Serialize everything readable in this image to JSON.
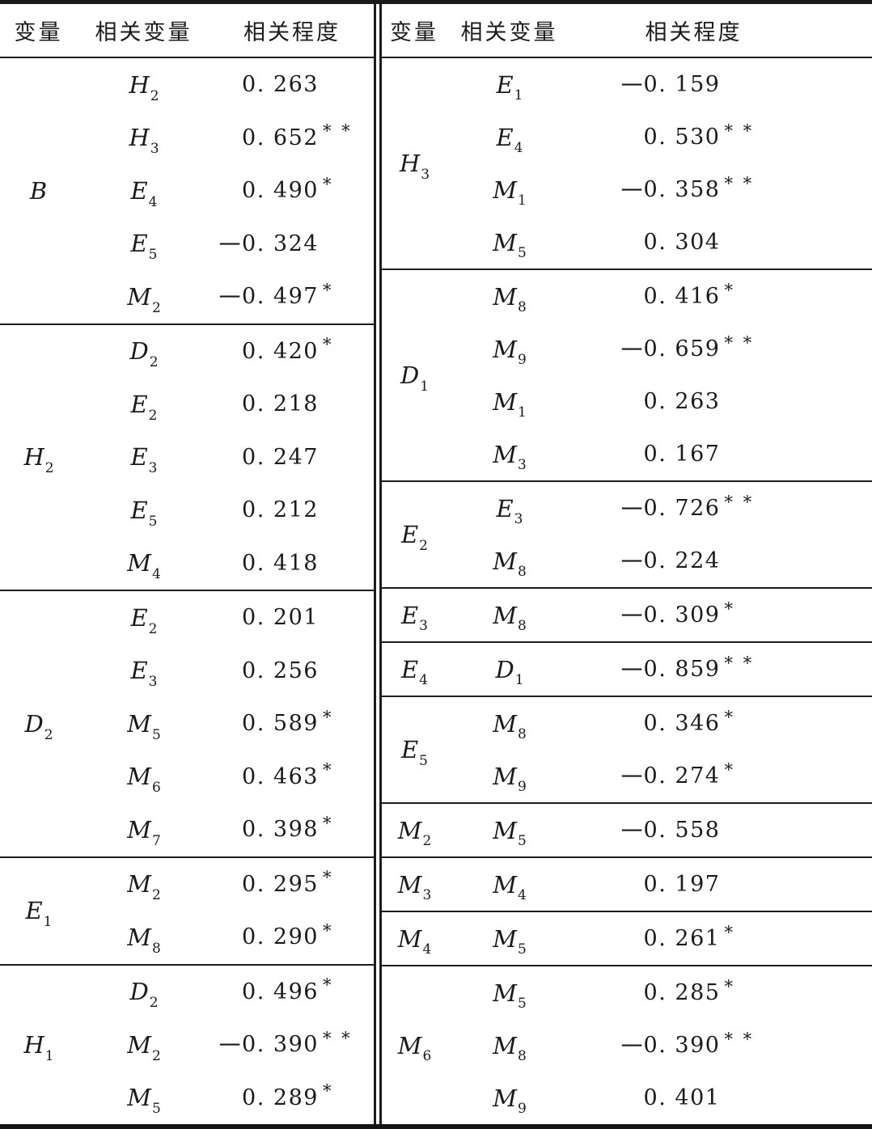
{
  "table": {
    "halves": [
      {
        "id": "left",
        "headers": {
          "variable": "变量",
          "related": "相关变量",
          "degree": "相关程度"
        },
        "sections": [
          {
            "variable": {
              "base": "B",
              "sub": ""
            },
            "rows": [
              {
                "related": {
                  "base": "H",
                  "sub": "2"
                },
                "value": {
                  "sign": "",
                  "num": "0. 263",
                  "stars": ""
                }
              },
              {
                "related": {
                  "base": "H",
                  "sub": "3"
                },
                "value": {
                  "sign": "",
                  "num": "0. 652",
                  "stars": "* *"
                }
              },
              {
                "related": {
                  "base": "E",
                  "sub": "4"
                },
                "value": {
                  "sign": "",
                  "num": "0. 490",
                  "stars": "*"
                }
              },
              {
                "related": {
                  "base": "E",
                  "sub": "5"
                },
                "value": {
                  "sign": "−",
                  "num": "0. 324",
                  "stars": ""
                }
              },
              {
                "related": {
                  "base": "M",
                  "sub": "2"
                },
                "value": {
                  "sign": "−",
                  "num": "0. 497",
                  "stars": "*"
                }
              }
            ]
          },
          {
            "variable": {
              "base": "H",
              "sub": "2"
            },
            "rows": [
              {
                "related": {
                  "base": "D",
                  "sub": "2"
                },
                "value": {
                  "sign": "",
                  "num": "0. 420",
                  "stars": "*"
                }
              },
              {
                "related": {
                  "base": "E",
                  "sub": "2"
                },
                "value": {
                  "sign": "",
                  "num": "0. 218",
                  "stars": ""
                }
              },
              {
                "related": {
                  "base": "E",
                  "sub": "3"
                },
                "value": {
                  "sign": "",
                  "num": "0. 247",
                  "stars": ""
                }
              },
              {
                "related": {
                  "base": "E",
                  "sub": "5"
                },
                "value": {
                  "sign": "",
                  "num": "0. 212",
                  "stars": ""
                }
              },
              {
                "related": {
                  "base": "M",
                  "sub": "4"
                },
                "value": {
                  "sign": "",
                  "num": "0. 418",
                  "stars": ""
                }
              }
            ]
          },
          {
            "variable": {
              "base": "D",
              "sub": "2"
            },
            "rows": [
              {
                "related": {
                  "base": "E",
                  "sub": "2"
                },
                "value": {
                  "sign": "",
                  "num": "0. 201",
                  "stars": ""
                }
              },
              {
                "related": {
                  "base": "E",
                  "sub": "3"
                },
                "value": {
                  "sign": "",
                  "num": "0. 256",
                  "stars": ""
                }
              },
              {
                "related": {
                  "base": "M",
                  "sub": "5"
                },
                "value": {
                  "sign": "",
                  "num": "0. 589",
                  "stars": "*"
                }
              },
              {
                "related": {
                  "base": "M",
                  "sub": "6"
                },
                "value": {
                  "sign": "",
                  "num": "0. 463",
                  "stars": "*"
                }
              },
              {
                "related": {
                  "base": "M",
                  "sub": "7"
                },
                "value": {
                  "sign": "",
                  "num": "0. 398",
                  "stars": "*"
                }
              }
            ]
          },
          {
            "variable": {
              "base": "E",
              "sub": "1"
            },
            "rows": [
              {
                "related": {
                  "base": "M",
                  "sub": "2"
                },
                "value": {
                  "sign": "",
                  "num": "0. 295",
                  "stars": "*"
                }
              },
              {
                "related": {
                  "base": "M",
                  "sub": "8"
                },
                "value": {
                  "sign": "",
                  "num": "0. 290",
                  "stars": "*"
                }
              }
            ]
          },
          {
            "variable": {
              "base": "H",
              "sub": "1"
            },
            "rows": [
              {
                "related": {
                  "base": "D",
                  "sub": "2"
                },
                "value": {
                  "sign": "",
                  "num": "0. 496",
                  "stars": "*"
                }
              },
              {
                "related": {
                  "base": "M",
                  "sub": "2"
                },
                "value": {
                  "sign": "−",
                  "num": "0. 390",
                  "stars": "* *"
                }
              },
              {
                "related": {
                  "base": "M",
                  "sub": "5"
                },
                "value": {
                  "sign": "",
                  "num": "0. 289",
                  "stars": "*"
                }
              }
            ]
          }
        ]
      },
      {
        "id": "right",
        "headers": {
          "variable": "变量",
          "related": "相关变量",
          "degree": "相关程度"
        },
        "sections": [
          {
            "variable": {
              "base": "H",
              "sub": "3"
            },
            "rows": [
              {
                "related": {
                  "base": "E",
                  "sub": "1"
                },
                "value": {
                  "sign": "−",
                  "num": "0. 159",
                  "stars": ""
                }
              },
              {
                "related": {
                  "base": "E",
                  "sub": "4"
                },
                "value": {
                  "sign": "",
                  "num": "0. 530",
                  "stars": "* *"
                }
              },
              {
                "related": {
                  "base": "M",
                  "sub": "1"
                },
                "value": {
                  "sign": "−",
                  "num": "0. 358",
                  "stars": "* *"
                }
              },
              {
                "related": {
                  "base": "M",
                  "sub": "5"
                },
                "value": {
                  "sign": "",
                  "num": "0. 304",
                  "stars": ""
                }
              }
            ]
          },
          {
            "variable": {
              "base": "D",
              "sub": "1"
            },
            "rows": [
              {
                "related": {
                  "base": "M",
                  "sub": "8"
                },
                "value": {
                  "sign": "",
                  "num": "0. 416",
                  "stars": "*"
                }
              },
              {
                "related": {
                  "base": "M",
                  "sub": "9"
                },
                "value": {
                  "sign": "−",
                  "num": "0. 659",
                  "stars": "* *"
                }
              },
              {
                "related": {
                  "base": "M",
                  "sub": "1"
                },
                "value": {
                  "sign": "",
                  "num": "0. 263",
                  "stars": ""
                }
              },
              {
                "related": {
                  "base": "M",
                  "sub": "3"
                },
                "value": {
                  "sign": "",
                  "num": "0. 167",
                  "stars": ""
                }
              }
            ]
          },
          {
            "variable": {
              "base": "E",
              "sub": "2"
            },
            "rows": [
              {
                "related": {
                  "base": "E",
                  "sub": "3"
                },
                "value": {
                  "sign": "−",
                  "num": "0. 726",
                  "stars": "* *"
                }
              },
              {
                "related": {
                  "base": "M",
                  "sub": "8"
                },
                "value": {
                  "sign": "−",
                  "num": "0. 224",
                  "stars": ""
                }
              }
            ]
          },
          {
            "variable": {
              "base": "E",
              "sub": "3"
            },
            "rows": [
              {
                "related": {
                  "base": "M",
                  "sub": "8"
                },
                "value": {
                  "sign": "−",
                  "num": "0. 309",
                  "stars": "*"
                }
              }
            ]
          },
          {
            "variable": {
              "base": "E",
              "sub": "4"
            },
            "rows": [
              {
                "related": {
                  "base": "D",
                  "sub": "1"
                },
                "value": {
                  "sign": "−",
                  "num": "0. 859",
                  "stars": "* *"
                }
              }
            ]
          },
          {
            "variable": {
              "base": "E",
              "sub": "5"
            },
            "rows": [
              {
                "related": {
                  "base": "M",
                  "sub": "8"
                },
                "value": {
                  "sign": "",
                  "num": "0. 346",
                  "stars": "*"
                }
              },
              {
                "related": {
                  "base": "M",
                  "sub": "9"
                },
                "value": {
                  "sign": "−",
                  "num": "0. 274",
                  "stars": "*"
                }
              }
            ]
          },
          {
            "variable": {
              "base": "M",
              "sub": "2"
            },
            "rows": [
              {
                "related": {
                  "base": "M",
                  "sub": "5"
                },
                "value": {
                  "sign": "−",
                  "num": "0. 558",
                  "stars": ""
                }
              }
            ]
          },
          {
            "variable": {
              "base": "M",
              "sub": "3"
            },
            "rows": [
              {
                "related": {
                  "base": "M",
                  "sub": "4"
                },
                "value": {
                  "sign": "",
                  "num": "0. 197",
                  "stars": ""
                }
              }
            ]
          },
          {
            "variable": {
              "base": "M",
              "sub": "4"
            },
            "rows": [
              {
                "related": {
                  "base": "M",
                  "sub": "5"
                },
                "value": {
                  "sign": "",
                  "num": "0. 261",
                  "stars": "*"
                }
              }
            ]
          },
          {
            "variable": {
              "base": "M",
              "sub": "6"
            },
            "rows": [
              {
                "related": {
                  "base": "M",
                  "sub": "5"
                },
                "value": {
                  "sign": "",
                  "num": "0. 285",
                  "stars": "*"
                }
              },
              {
                "related": {
                  "base": "M",
                  "sub": "8"
                },
                "value": {
                  "sign": "−",
                  "num": "0. 390",
                  "stars": "* *"
                }
              },
              {
                "related": {
                  "base": "M",
                  "sub": "9"
                },
                "value": {
                  "sign": "",
                  "num": "0. 401",
                  "stars": ""
                }
              }
            ]
          }
        ]
      }
    ]
  }
}
